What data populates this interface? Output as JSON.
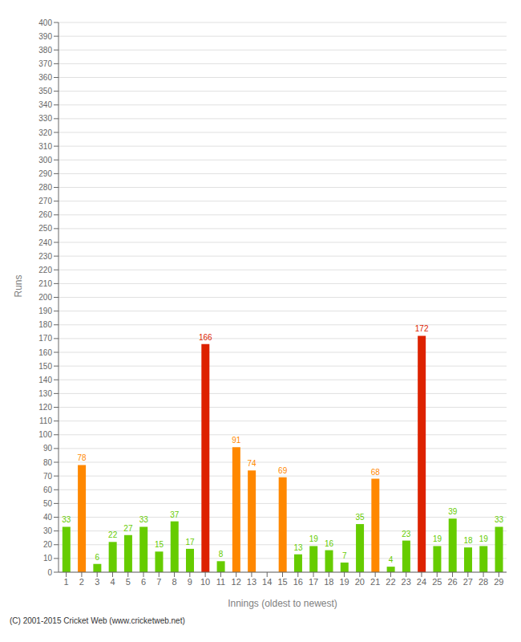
{
  "chart_data": {
    "type": "bar",
    "categories": [
      "1",
      "2",
      "3",
      "4",
      "5",
      "6",
      "7",
      "8",
      "9",
      "10",
      "11",
      "12",
      "13",
      "14",
      "15",
      "16",
      "17",
      "18",
      "19",
      "20",
      "21",
      "22",
      "23",
      "24",
      "25",
      "26",
      "27",
      "28",
      "29"
    ],
    "values": [
      33,
      78,
      6,
      22,
      27,
      33,
      15,
      37,
      17,
      166,
      8,
      91,
      74,
      0,
      69,
      13,
      19,
      16,
      7,
      35,
      68,
      4,
      23,
      172,
      19,
      39,
      18,
      19,
      33
    ],
    "colors": [
      "#66cc00",
      "#ff8800",
      "#66cc00",
      "#66cc00",
      "#66cc00",
      "#66cc00",
      "#66cc00",
      "#66cc00",
      "#66cc00",
      "#dd2200",
      "#66cc00",
      "#ff8800",
      "#ff8800",
      "#66cc00",
      "#ff8800",
      "#66cc00",
      "#66cc00",
      "#66cc00",
      "#66cc00",
      "#66cc00",
      "#ff8800",
      "#66cc00",
      "#66cc00",
      "#dd2200",
      "#66cc00",
      "#66cc00",
      "#66cc00",
      "#66cc00",
      "#66cc00"
    ],
    "xlabel": "Innings (oldest to newest)",
    "ylabel": "Runs",
    "ylim": [
      0,
      400
    ],
    "yticks": [
      0,
      10,
      20,
      30,
      40,
      50,
      60,
      70,
      80,
      90,
      100,
      110,
      120,
      130,
      140,
      150,
      160,
      170,
      180,
      190,
      200,
      210,
      220,
      230,
      240,
      250,
      260,
      270,
      280,
      290,
      300,
      310,
      320,
      330,
      340,
      350,
      360,
      370,
      380,
      390,
      400
    ],
    "grid": true,
    "data_labels": true,
    "annotations": [
      "(C) 2001-2015 Cricket Web (www.cricketweb.net)"
    ]
  }
}
